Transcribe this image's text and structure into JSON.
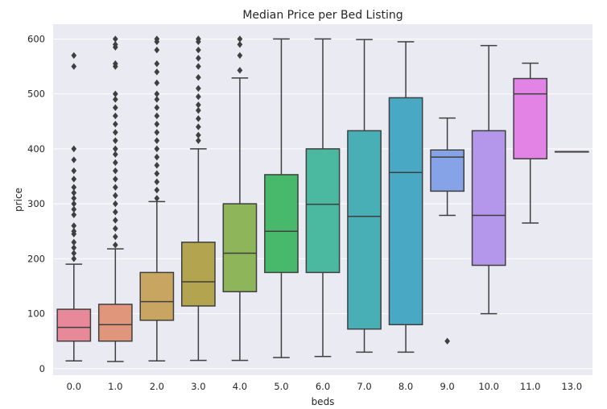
{
  "chart_data": {
    "type": "box",
    "title": "Median Price per Bed Listing",
    "xlabel": "beds",
    "ylabel": "price",
    "ylim": [
      -12,
      627
    ],
    "yticks": [
      0,
      100,
      200,
      300,
      400,
      500,
      600
    ],
    "grid": true,
    "legend": "none",
    "background": "#eaeaf2",
    "categories": [
      "0.0",
      "1.0",
      "2.0",
      "3.0",
      "4.0",
      "5.0",
      "6.0",
      "7.0",
      "8.0",
      "9.0",
      "10.0",
      "11.0",
      "13.0"
    ],
    "series": [
      {
        "color": "#e8899a",
        "stats": [
          {
            "whislo": 14,
            "q1": 50,
            "med": 75,
            "q3": 108,
            "whishi": 190,
            "fliers": [
              200,
              210,
              220,
              230,
              245,
              250,
              260,
              280,
              290,
              300,
              310,
              320,
              330,
              345,
              360,
              380,
              400,
              550,
              570
            ]
          },
          {
            "whislo": 13,
            "q1": 50,
            "med": 80,
            "q3": 117,
            "whishi": 218,
            "fliers": [
              225,
              240,
              255,
              270,
              285,
              300,
              315,
              330,
              345,
              360,
              375,
              390,
              400,
              415,
              430,
              445,
              460,
              475,
              490,
              500,
              550,
              555,
              585,
              590,
              600
            ]
          },
          {
            "whislo": 14,
            "q1": 88,
            "med": 122,
            "q3": 175,
            "whishi": 304,
            "fliers": [
              310,
              325,
              340,
              355,
              370,
              385,
              400,
              415,
              430,
              445,
              460,
              475,
              490,
              500,
              520,
              540,
              555,
              580,
              595,
              600
            ]
          },
          {
            "whislo": 15,
            "q1": 114,
            "med": 158,
            "q3": 230,
            "whishi": 400,
            "fliers": [
              415,
              425,
              440,
              455,
              470,
              480,
              495,
              510,
              530,
              550,
              565,
              580,
              595,
              600
            ]
          },
          {
            "whislo": 15,
            "q1": 140,
            "med": 210,
            "q3": 300,
            "whishi": 529,
            "fliers": [
              543,
              570,
              590,
              600
            ]
          },
          {
            "whislo": 20,
            "q1": 175,
            "med": 250,
            "q3": 353,
            "whishi": 600,
            "fliers": []
          },
          {
            "whislo": 22,
            "q1": 175,
            "med": 299,
            "q3": 400,
            "whishi": 600,
            "fliers": []
          },
          {
            "whislo": 30,
            "q1": 72,
            "med": 277,
            "q3": 433,
            "whishi": 599,
            "fliers": []
          },
          {
            "whislo": 30,
            "q1": 80,
            "med": 357,
            "q3": 493,
            "whishi": 595,
            "fliers": []
          },
          {
            "whislo": 279,
            "q1": 323,
            "med": 385,
            "q3": 398,
            "whishi": 456,
            "fliers": [
              50
            ]
          },
          {
            "whislo": 100,
            "q1": 188,
            "med": 279,
            "q3": 433,
            "whishi": 588,
            "fliers": []
          },
          {
            "whislo": 265,
            "q1": 382,
            "med": 500,
            "q3": 528,
            "whishi": 556,
            "fliers": []
          },
          {
            "whislo": 395,
            "q1": 395,
            "med": 395,
            "q3": 395,
            "whishi": 395,
            "fliers": []
          }
        ]
      }
    ],
    "colors": [
      "#e8899a",
      "#df967a",
      "#c9a562",
      "#b3a550",
      "#8eb55a",
      "#48b96b",
      "#4bb8a0",
      "#48afb6",
      "#49a9c4",
      "#85a3e6",
      "#b497ea",
      "#e283e5",
      "#e97fbe"
    ]
  }
}
